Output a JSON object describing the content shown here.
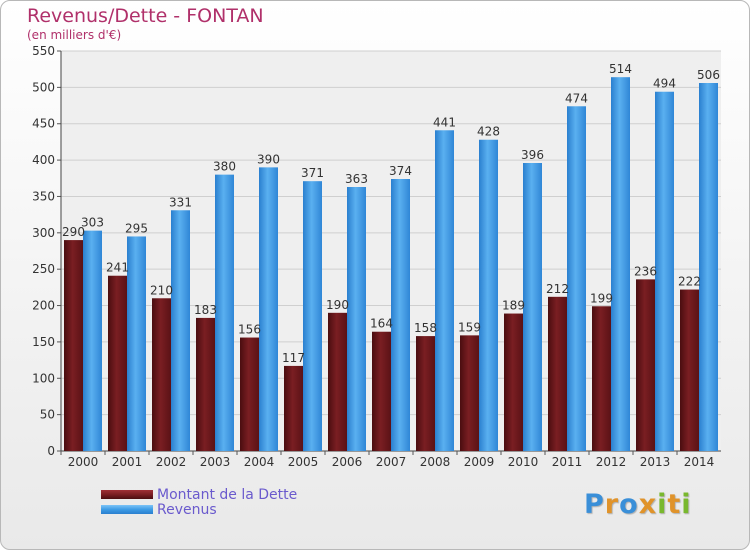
{
  "chart_data": {
    "type": "bar",
    "title": "Revenus/Dette - FONTAN",
    "subtitle": "(en milliers d'€)",
    "categories": [
      "2000",
      "2001",
      "2002",
      "2003",
      "2004",
      "2005",
      "2006",
      "2007",
      "2008",
      "2009",
      "2010",
      "2011",
      "2012",
      "2013",
      "2014"
    ],
    "series": [
      {
        "name": "Montant de la Dette",
        "color": "#7a1e22",
        "values": [
          290,
          241,
          210,
          183,
          156,
          117,
          190,
          164,
          158,
          159,
          189,
          212,
          199,
          236,
          222
        ]
      },
      {
        "name": "Revenus",
        "color": "#3d9be5",
        "values": [
          303,
          295,
          331,
          380,
          390,
          371,
          363,
          374,
          441,
          428,
          396,
          474,
          514,
          494,
          506
        ]
      }
    ],
    "ylim": [
      0,
      550
    ],
    "yticks": [
      0,
      50,
      100,
      150,
      200,
      250,
      300,
      350,
      400,
      450,
      500,
      550
    ],
    "grid": true,
    "legend_position": "bottom-left"
  },
  "logo": {
    "letters": [
      {
        "char": "P",
        "color": "#3a8fd8"
      },
      {
        "char": "r",
        "color": "#e0932a"
      },
      {
        "char": "o",
        "color": "#3a8fd8"
      },
      {
        "char": "x",
        "color": "#e0932a"
      },
      {
        "char": "i",
        "color": "#79b82e"
      },
      {
        "char": "t",
        "color": "#e0932a"
      },
      {
        "char": "i",
        "color": "#79b82e"
      }
    ]
  }
}
